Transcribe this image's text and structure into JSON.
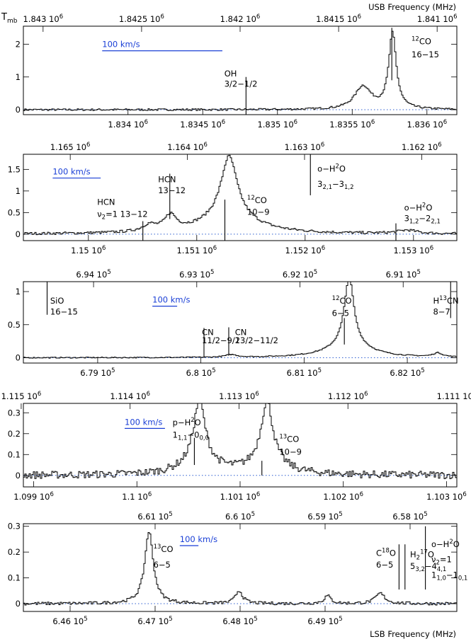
{
  "figure": {
    "ylabel": "T",
    "ylabel_sub": "mb",
    "usb_label": "USB Frequency (MHz)",
    "lsb_label": "LSB Frequency (MHz)"
  },
  "chart_data": [
    {
      "type": "line",
      "usb_range": [
        1843100.0,
        1840900.0
      ],
      "lsb_range": [
        1833300.0,
        1836200.0
      ],
      "ylim": [
        -0.15,
        2.55
      ],
      "yticks": [
        {
          "v": 0,
          "label": "0"
        },
        {
          "v": 1,
          "label": "1"
        },
        {
          "v": 2,
          "label": "2"
        }
      ],
      "usb_ticks": [
        {
          "v": 1843000.0,
          "m": "1.843",
          "e": "6"
        },
        {
          "v": 1842500.0,
          "m": "1.8425",
          "e": "6"
        },
        {
          "v": 1842000.0,
          "m": "1.842",
          "e": "6"
        },
        {
          "v": 1841500.0,
          "m": "1.8415",
          "e": "6"
        },
        {
          "v": 1841000.0,
          "m": "1.841",
          "e": "6"
        }
      ],
      "lsb_ticks": [
        {
          "v": 1834000.0,
          "m": "1.834",
          "e": "6"
        },
        {
          "v": 1834500.0,
          "m": "1.8345",
          "e": "6"
        },
        {
          "v": 1835000.0,
          "m": "1.835",
          "e": "6"
        },
        {
          "v": 1835500.0,
          "m": "1.8355",
          "e": "6"
        },
        {
          "v": 1836000.0,
          "m": "1.836",
          "e": "6"
        }
      ],
      "velocity_bar": {
        "label": "100 km/s",
        "usb_from": 1842700.0,
        "usb_to": 1842090.0,
        "y": 1.8
      },
      "noise": 0.03,
      "lines": [
        {
          "name": "12CO 16-15",
          "usb": 1841230.0,
          "peak": 2.3,
          "width": 0.16
        },
        {
          "name": "12CO 16-15 wing",
          "usb": 1841380.0,
          "peak": 0.7,
          "width": 0.35
        }
      ],
      "markers": [
        {
          "usb": 1841970.0,
          "y0": -0.15,
          "y1": 1.0,
          "text": [
            [
              "OH"
            ],
            [
              "3/2−1/2"
            ]
          ],
          "tx": 1842080.0,
          "ty": [
            1.02,
            0.7
          ]
        },
        {
          "usb": 1841230.0,
          "y0": 0.9,
          "y1": 2.5,
          "text": [
            [
              "",
              "12",
              "CO"
            ],
            [
              "16−15"
            ]
          ],
          "tx": 1841130.0,
          "ty": [
            2.0,
            1.6
          ]
        }
      ],
      "sample_step": 12
    },
    {
      "type": "line",
      "usb_range": [
        1165400.0,
        1161700.0
      ],
      "lsb_range": [
        1149400.0,
        1153400.0
      ],
      "ylim": [
        -0.15,
        1.85
      ],
      "yticks": [
        {
          "v": 0,
          "label": "0"
        },
        {
          "v": 0.5,
          "label": "0.5"
        },
        {
          "v": 1,
          "label": "1"
        },
        {
          "v": 1.5,
          "label": "1.5"
        }
      ],
      "usb_ticks": [
        {
          "v": 1165000.0,
          "m": "1.165",
          "e": "6"
        },
        {
          "v": 1164000.0,
          "m": "1.164",
          "e": "6"
        },
        {
          "v": 1163000.0,
          "m": "1.163",
          "e": "6"
        },
        {
          "v": 1162000.0,
          "m": "1.162",
          "e": "6"
        }
      ],
      "lsb_ticks": [
        {
          "v": 1150000.0,
          "m": "1.15",
          "e": "6"
        },
        {
          "v": 1151000.0,
          "m": "1.151",
          "e": "6"
        },
        {
          "v": 1152000.0,
          "m": "1.152",
          "e": "6"
        },
        {
          "v": 1153000.0,
          "m": "1.153",
          "e": "6"
        }
      ],
      "velocity_bar": {
        "label": "100 km/s",
        "usb_from": 1165150.0,
        "usb_to": 1164740.0,
        "y": 1.3
      },
      "noise": 0.03,
      "lines": [
        {
          "name": "12CO 10-9",
          "usb": 1163650.0,
          "peak": 1.45,
          "width": 0.35
        },
        {
          "name": "12CO wing",
          "usb": 1163650.0,
          "peak": 0.35,
          "width": 1.2
        },
        {
          "name": "HCN 13-12",
          "usb": 1164150.0,
          "peak": 0.35,
          "width": 0.25
        },
        {
          "name": "HCN v2=1",
          "usb": 1164330.0,
          "peak": 0.15,
          "width": 0.3
        },
        {
          "name": "o-H2O 31,2-22,1",
          "usb": 1162130.0,
          "peak": 0.08,
          "width": 0.4
        }
      ],
      "markers": [
        {
          "usb": 1164380.0,
          "y0": -0.15,
          "y1": 0.3,
          "text": [
            [
              "HCN"
            ],
            [
              "ν",
              "2",
              "=1  13−12"
            ]
          ],
          "tx": 1164770.0,
          "ty": [
            0.68,
            0.4
          ]
        },
        {
          "usb": 1164150.0,
          "y0": 0.35,
          "y1": 1.4,
          "text": [
            [
              "HCN"
            ],
            [
              "13−12"
            ]
          ],
          "tx": 1164250.0,
          "ty": [
            1.2,
            0.95
          ]
        },
        {
          "usb": 1163680.0,
          "y0": -0.15,
          "y1": 0.8,
          "text": [
            [
              "",
              "12",
              "CO"
            ],
            [
              "10−9"
            ]
          ],
          "tx": 1163490.0,
          "ty": [
            0.72,
            0.45
          ]
        },
        {
          "usb": 1162950.0,
          "y0": 0.9,
          "y1": 1.85,
          "text": [
            [
              "o−H",
              "2",
              "O"
            ],
            [
              "3",
              "2,1",
              "−3",
              "1,2"
            ]
          ],
          "tx": 1162890.0,
          "ty": [
            1.45,
            1.1
          ]
        },
        {
          "usb": 1162220.0,
          "y0": -0.15,
          "y1": 0.25,
          "text": [
            [
              "o−H",
              "2",
              "O"
            ],
            [
              "3",
              "1,2",
              "−2",
              "2,1"
            ]
          ],
          "tx": 1162150.0,
          "ty": [
            0.55,
            0.3
          ]
        }
      ],
      "sample_step": 8
    },
    {
      "type": "line",
      "usb_range": [
        694680.0,
        690480.0
      ],
      "lsb_range": [
        678280.0,
        682480.0
      ],
      "ylim": [
        -0.08,
        1.15
      ],
      "yticks": [
        {
          "v": 0,
          "label": "0"
        },
        {
          "v": 0.5,
          "label": "0.5"
        },
        {
          "v": 1,
          "label": "1"
        }
      ],
      "usb_ticks": [
        {
          "v": 694000.0,
          "m": "6.94",
          "e": "5"
        },
        {
          "v": 693000.0,
          "m": "6.93",
          "e": "5"
        },
        {
          "v": 692000.0,
          "m": "6.92",
          "e": "5"
        },
        {
          "v": 691000.0,
          "m": "6.91",
          "e": "5"
        }
      ],
      "lsb_ticks": [
        {
          "v": 679000.0,
          "m": "6.79",
          "e": "5"
        },
        {
          "v": 680000.0,
          "m": "6.8",
          "e": "5"
        },
        {
          "v": 681000.0,
          "m": "6.81",
          "e": "5"
        },
        {
          "v": 682000.0,
          "m": "6.82",
          "e": "5"
        }
      ],
      "velocity_bar": {
        "label": "100 km/s",
        "usb_from": 693430.0,
        "usb_to": 693190.0,
        "y": 0.78
      },
      "noise": 0.008,
      "lines": [
        {
          "name": "12CO 6-5",
          "usb": 691530.0,
          "peak": 1.05,
          "width": 0.2
        },
        {
          "name": "12CO wing",
          "usb": 691530.0,
          "peak": 0.18,
          "width": 0.9
        },
        {
          "name": "H13CN 8-7",
          "usb": 690670.0,
          "peak": 0.06,
          "width": 0.2
        },
        {
          "name": "CN",
          "usb": 692670.0,
          "peak": 0.04,
          "width": 0.25
        }
      ],
      "markers": [
        {
          "usb": 694450.0,
          "y0": 0.65,
          "y1": 1.15,
          "text": [
            [
              "SiO"
            ],
            [
              "16−15"
            ]
          ],
          "tx": 694420.0,
          "ty": [
            0.82,
            0.65
          ]
        },
        {
          "usb": 692930.0,
          "y0": 0.0,
          "y1": 0.45,
          "text": [
            [
              "CN"
            ],
            [
              "11/2−9/2"
            ]
          ],
          "tx": 692950.0,
          "ty": [
            0.34,
            0.22
          ]
        },
        {
          "usb": 692690.0,
          "y0": 0.03,
          "y1": 0.46,
          "text": [
            [
              "CN"
            ],
            [
              "13/2−11/2"
            ]
          ],
          "tx": 692630.0,
          "ty": [
            0.34,
            0.22
          ]
        },
        {
          "usb": 691570.0,
          "y0": 0.2,
          "y1": 0.6,
          "text": [
            [
              "",
              "12",
              "CO"
            ],
            [
              "6−5"
            ]
          ],
          "tx": 691690.0,
          "ty": [
            0.82,
            0.63
          ]
        },
        {
          "usb": 690540.0,
          "y0": 0.6,
          "y1": 1.15,
          "text": [
            [
              "H",
              "13",
              "CN"
            ],
            [
              "8−7"
            ]
          ],
          "tx": 690710.0,
          "ty": [
            0.82,
            0.65
          ]
        }
      ],
      "sample_step": 10
    },
    {
      "type": "line",
      "usb_range": [
        1114980.0,
        1111000.0
      ],
      "lsb_range": [
        1098900.0,
        1103100.0
      ],
      "ylim": [
        -0.055,
        0.345
      ],
      "yticks": [
        {
          "v": 0,
          "label": "0"
        },
        {
          "v": 0.1,
          "label": "0.1"
        },
        {
          "v": 0.2,
          "label": "0.2"
        },
        {
          "v": 0.3,
          "label": "0.3"
        }
      ],
      "usb_ticks": [
        {
          "v": 1115000.0,
          "m": "1.115",
          "e": "6"
        },
        {
          "v": 1114000.0,
          "m": "1.114",
          "e": "6"
        },
        {
          "v": 1113000.0,
          "m": "1.113",
          "e": "6"
        },
        {
          "v": 1112000.0,
          "m": "1.112",
          "e": "6"
        },
        {
          "v": 1111000.0,
          "m": "1.111",
          "e": "6"
        }
      ],
      "lsb_ticks": [
        {
          "v": 1099000.0,
          "m": "1.099",
          "e": "6"
        },
        {
          "v": 1100000.0,
          "m": "1.1",
          "e": "6"
        },
        {
          "v": 1101000.0,
          "m": "1.101",
          "e": "6"
        },
        {
          "v": 1102000.0,
          "m": "1.102",
          "e": "6"
        },
        {
          "v": 1103000.0,
          "m": "1.103",
          "e": "6"
        }
      ],
      "velocity_bar": {
        "label": "100 km/s",
        "usb_from": 1114050.0,
        "usb_to": 1113680.0,
        "y": 0.225
      },
      "noise": 0.018,
      "lines": [
        {
          "name": "p-H2O 11,1-00,0",
          "usb": 1113370.0,
          "peak": 0.3,
          "width": 0.25
        },
        {
          "name": "p-H2O wing",
          "usb": 1113370.0,
          "peak": 0.05,
          "width": 0.8
        },
        {
          "name": "13CO 10-9",
          "usb": 1112750.0,
          "peak": 0.3,
          "width": 0.25
        },
        {
          "name": "13CO wing",
          "usb": 1112750.0,
          "peak": 0.05,
          "width": 0.8
        }
      ],
      "markers": [
        {
          "usb": 1113410.0,
          "y0": 0.05,
          "y1": 0.18,
          "text": [
            [
              "p−H",
              "2",
              "O"
            ],
            [
              "1",
              "1,1",
              "−0",
              "0,0"
            ]
          ],
          "tx": 1113610.0,
          "ty": [
            0.24,
            0.18
          ]
        },
        {
          "usb": 1112790.0,
          "y0": 0.0,
          "y1": 0.07,
          "text": [
            [
              "",
              "13",
              "CO"
            ],
            [
              "10−9"
            ]
          ],
          "tx": 1112630.0,
          "ty": [
            0.16,
            0.1
          ]
        }
      ],
      "sample_step": 5
    },
    {
      "type": "line",
      "usb_range": [
        662550.0,
        657450.0
      ],
      "lsb_range": [
        645450.0,
        650550.0
      ],
      "ylim": [
        -0.03,
        0.31
      ],
      "yticks": [
        {
          "v": 0,
          "label": "0"
        },
        {
          "v": 0.1,
          "label": "0.1"
        },
        {
          "v": 0.2,
          "label": "0.2"
        },
        {
          "v": 0.3,
          "label": "0.3"
        }
      ],
      "usb_ticks": [
        {
          "v": 661000.0,
          "m": "6.61",
          "e": "5"
        },
        {
          "v": 660000.0,
          "m": "6.6",
          "e": "5"
        },
        {
          "v": 659000.0,
          "m": "6.59",
          "e": "5"
        },
        {
          "v": 658000.0,
          "m": "6.58",
          "e": "5"
        }
      ],
      "lsb_ticks": [
        {
          "v": 646000.0,
          "m": "6.46",
          "e": "5"
        },
        {
          "v": 647000.0,
          "m": "6.47",
          "e": "5"
        },
        {
          "v": 648000.0,
          "m": "6.48",
          "e": "5"
        },
        {
          "v": 649000.0,
          "m": "6.49",
          "e": "5"
        }
      ],
      "velocity_bar": {
        "label": "100 km/s",
        "usb_from": 660710.0,
        "usb_to": 660490.0,
        "y": 0.225
      },
      "noise": 0.006,
      "lines": [
        {
          "name": "13CO 6-5",
          "usb": 661080.0,
          "peak": 0.28,
          "width": 0.18
        },
        {
          "name": "feature 6.47e5",
          "usb": 660020.0,
          "peak": 0.05,
          "width": 0.15
        },
        {
          "name": "feature 6.48e5",
          "usb": 658980.0,
          "peak": 0.03,
          "width": 0.15
        },
        {
          "name": "feature 6.486e5",
          "usb": 658360.0,
          "peak": 0.04,
          "width": 0.2
        }
      ],
      "markers": [
        {
          "usb": 658130.0,
          "y0": 0.055,
          "y1": 0.23,
          "text": [
            [
              "C",
              "18",
              "O"
            ],
            [
              "6−5"
            ]
          ],
          "tx": 658400.0,
          "ty": [
            0.185,
            0.14
          ]
        },
        {
          "usb": 658060.0,
          "y0": 0.055,
          "y1": 0.23,
          "text": [
            [
              "H",
              "2",
              "",
              "17",
              "O"
            ],
            [
              "5",
              "3,2",
              "−4",
              "4,1"
            ]
          ],
          "tx": 658000.0,
          "ty": [
            0.18,
            0.135
          ]
        },
        {
          "usb": 657820.0,
          "y0": 0.055,
          "y1": 0.3,
          "text": [
            [
              "o−H",
              "2",
              "O"
            ],
            [
              "ν",
              "2",
              "=1"
            ],
            [
              "1",
              "1,0",
              "−1",
              "0,1"
            ]
          ],
          "tx": 657750.0,
          "ty": [
            0.22,
            0.16,
            0.1
          ]
        },
        {
          "usb": 661190.0,
          "y0": 0.0,
          "y1": 0.0,
          "text": [
            [
              "",
              "13",
              "CO"
            ],
            [
              "6−5"
            ]
          ],
          "tx": 661020.0,
          "ty": [
            0.2,
            0.14
          ]
        }
      ],
      "sample_step": 8
    }
  ]
}
